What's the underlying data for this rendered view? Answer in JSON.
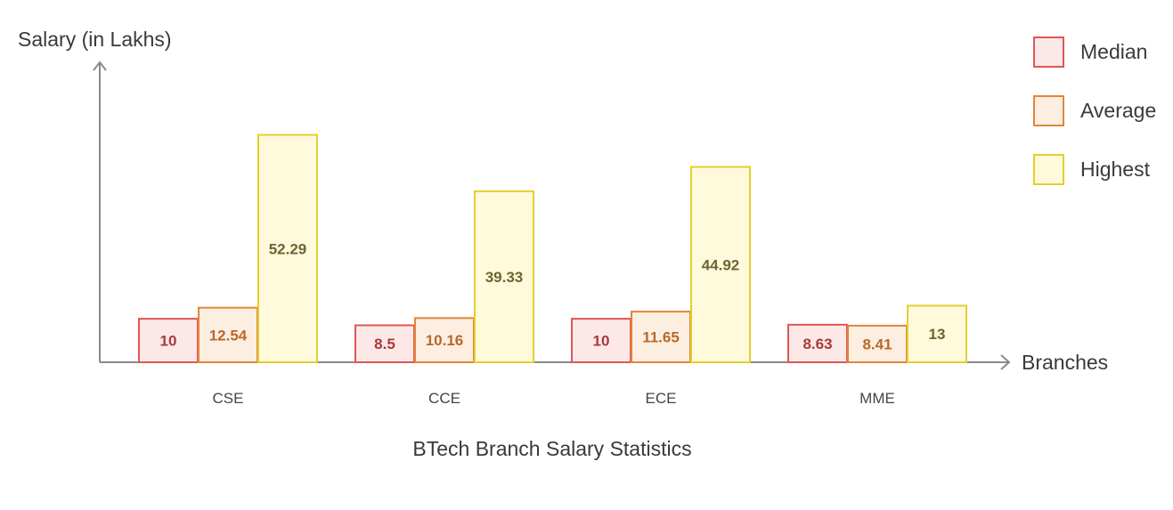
{
  "chart_data": {
    "type": "bar",
    "title": "BTech Branch Salary Statistics",
    "xlabel": "Branches",
    "ylabel": "Salary (in Lakhs)",
    "categories": [
      "CSE",
      "CCE",
      "ECE",
      "MME"
    ],
    "series": [
      {
        "name": "Median",
        "values": [
          10,
          8.5,
          10,
          8.63
        ]
      },
      {
        "name": "Average",
        "values": [
          12.54,
          10.16,
          11.65,
          8.41
        ]
      },
      {
        "name": "Highest",
        "values": [
          52.29,
          39.33,
          44.92,
          13
        ]
      }
    ],
    "value_labels": [
      [
        "10",
        "8.5",
        "10",
        "8.63"
      ],
      [
        "12.54",
        "10.16",
        "11.65",
        "8.41"
      ],
      [
        "52.29",
        "39.33",
        "44.92",
        "13"
      ]
    ],
    "ylim": [
      0,
      70
    ],
    "grid": false,
    "legend_position": "top-right",
    "colors": {
      "Median": {
        "fill": "#fde8e8",
        "stroke": "#e05656",
        "text": "#a83a3a"
      },
      "Average": {
        "fill": "#fdeee2",
        "stroke": "#e0873a",
        "text": "#b8692a"
      },
      "Highest": {
        "fill": "#fffadc",
        "stroke": "#e3cf2e",
        "text": "#6b6630"
      }
    }
  }
}
